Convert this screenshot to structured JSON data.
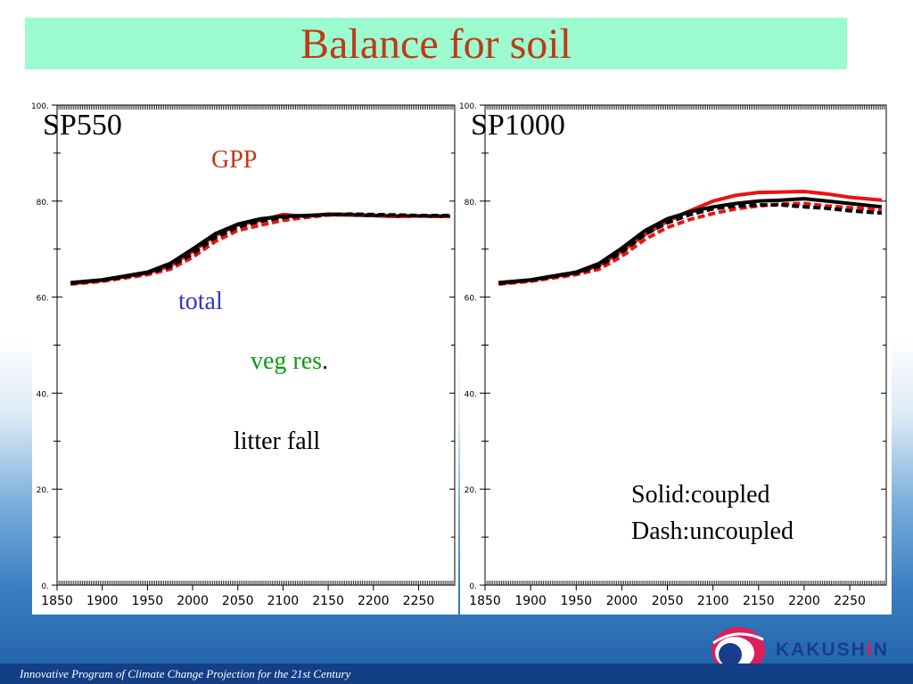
{
  "title": "Balance for soil",
  "labels": {
    "gpp": "GPP",
    "total": "total",
    "veg_res": "veg res",
    "veg_res_dot": ".",
    "litter_fall": "litter fall",
    "legend_solid": "Solid:coupled",
    "legend_dash": "Dash:uncoupled"
  },
  "footer": "Innovative Program of Climate Change Projection for the 21st Century",
  "logo": {
    "text_a": "KAKUSH",
    "text_i": "I",
    "text_b": "N"
  },
  "colors": {
    "title": "#c0391b",
    "title_bg": "#9cfccf",
    "gpp": "#c0391b",
    "total": "#3333cc",
    "veg_res": "#119911",
    "series_red": "#ee1111",
    "series_black": "#000000"
  },
  "chart_data": [
    {
      "type": "line",
      "panel_label": "SP550",
      "xlim": [
        1850,
        2290
      ],
      "ylim": [
        0,
        100
      ],
      "x_ticks": [
        "1850",
        "1900",
        "1950",
        "2000",
        "2050",
        "2100",
        "2150",
        "2200",
        "2250"
      ],
      "y_ticks": [
        "0.",
        "20.",
        "40.",
        "60.",
        "80.",
        "100."
      ],
      "series": [
        {
          "color": "#ee1111",
          "style": "solid",
          "x": [
            1865,
            1900,
            1950,
            1975,
            2000,
            2025,
            2050,
            2075,
            2100,
            2125,
            2150,
            2175,
            2200,
            2225,
            2250,
            2285
          ],
          "y": [
            62.8,
            63.5,
            65.0,
            66.5,
            69.5,
            72.8,
            75.0,
            76.0,
            77.2,
            76.8,
            77.3,
            77.2,
            77.0,
            76.8,
            76.9,
            76.8
          ]
        },
        {
          "color": "#000000",
          "style": "solid",
          "x": [
            1865,
            1900,
            1950,
            1975,
            2000,
            2025,
            2050,
            2075,
            2100,
            2125,
            2150,
            2175,
            2200,
            2225,
            2250,
            2285
          ],
          "y": [
            63.0,
            63.6,
            65.2,
            67.0,
            70.0,
            73.2,
            75.2,
            76.3,
            76.8,
            77.0,
            77.2,
            77.1,
            77.0,
            76.9,
            76.9,
            76.8
          ]
        },
        {
          "color": "#ee1111",
          "style": "dash",
          "x": [
            1865,
            1900,
            1950,
            1975,
            2000,
            2025,
            2050,
            2075,
            2100,
            2125,
            2150,
            2175,
            2200,
            2225,
            2250,
            2285
          ],
          "y": [
            62.7,
            63.3,
            64.7,
            65.8,
            68.3,
            71.6,
            73.9,
            75.0,
            76.0,
            76.6,
            77.1,
            77.2,
            77.1,
            76.9,
            76.9,
            76.8
          ]
        },
        {
          "color": "#000000",
          "style": "dash",
          "x": [
            1865,
            1900,
            1950,
            1975,
            2000,
            2025,
            2050,
            2075,
            2100,
            2125,
            2150,
            2175,
            2200,
            2225,
            2250,
            2285
          ],
          "y": [
            62.9,
            63.5,
            65.0,
            66.3,
            69.0,
            72.4,
            74.6,
            75.8,
            76.6,
            76.9,
            77.2,
            77.3,
            77.2,
            77.1,
            77.0,
            77.0
          ]
        }
      ]
    },
    {
      "type": "line",
      "panel_label": "SP1000",
      "xlim": [
        1850,
        2290
      ],
      "ylim": [
        0,
        100
      ],
      "x_ticks": [
        "1850",
        "1900",
        "1950",
        "2000",
        "2050",
        "2100",
        "2150",
        "2200",
        "2250"
      ],
      "y_ticks": [
        "0.",
        "20.",
        "40.",
        "60.",
        "80.",
        "100."
      ],
      "series": [
        {
          "color": "#ee1111",
          "style": "solid",
          "x": [
            1865,
            1900,
            1950,
            1975,
            2000,
            2025,
            2050,
            2075,
            2100,
            2125,
            2150,
            2175,
            2200,
            2225,
            2250,
            2285
          ],
          "y": [
            62.8,
            63.5,
            65.0,
            66.6,
            69.6,
            73.0,
            75.8,
            78.0,
            80.0,
            81.2,
            81.8,
            81.9,
            82.0,
            81.5,
            80.8,
            80.2
          ]
        },
        {
          "color": "#000000",
          "style": "solid",
          "x": [
            1865,
            1900,
            1950,
            1975,
            2000,
            2025,
            2050,
            2075,
            2100,
            2125,
            2150,
            2175,
            2200,
            2225,
            2250,
            2285
          ],
          "y": [
            63.0,
            63.6,
            65.2,
            67.0,
            70.2,
            73.8,
            76.3,
            77.8,
            78.8,
            79.5,
            80.0,
            80.2,
            80.5,
            80.0,
            79.5,
            78.8
          ]
        },
        {
          "color": "#ee1111",
          "style": "dash",
          "x": [
            1865,
            1900,
            1950,
            1975,
            2000,
            2025,
            2050,
            2075,
            2100,
            2125,
            2150,
            2175,
            2200,
            2225,
            2250,
            2285
          ],
          "y": [
            62.7,
            63.3,
            64.7,
            65.8,
            68.5,
            72.0,
            74.5,
            76.2,
            77.4,
            78.4,
            79.0,
            79.4,
            79.5,
            79.0,
            78.6,
            78.2
          ]
        },
        {
          "color": "#000000",
          "style": "dash",
          "x": [
            1865,
            1900,
            1950,
            1975,
            2000,
            2025,
            2050,
            2075,
            2100,
            2125,
            2150,
            2175,
            2200,
            2225,
            2250,
            2285
          ],
          "y": [
            62.9,
            63.5,
            65.0,
            66.4,
            69.4,
            73.0,
            75.5,
            77.2,
            78.4,
            79.0,
            79.2,
            79.2,
            78.8,
            78.5,
            78.0,
            77.5
          ]
        }
      ]
    }
  ]
}
